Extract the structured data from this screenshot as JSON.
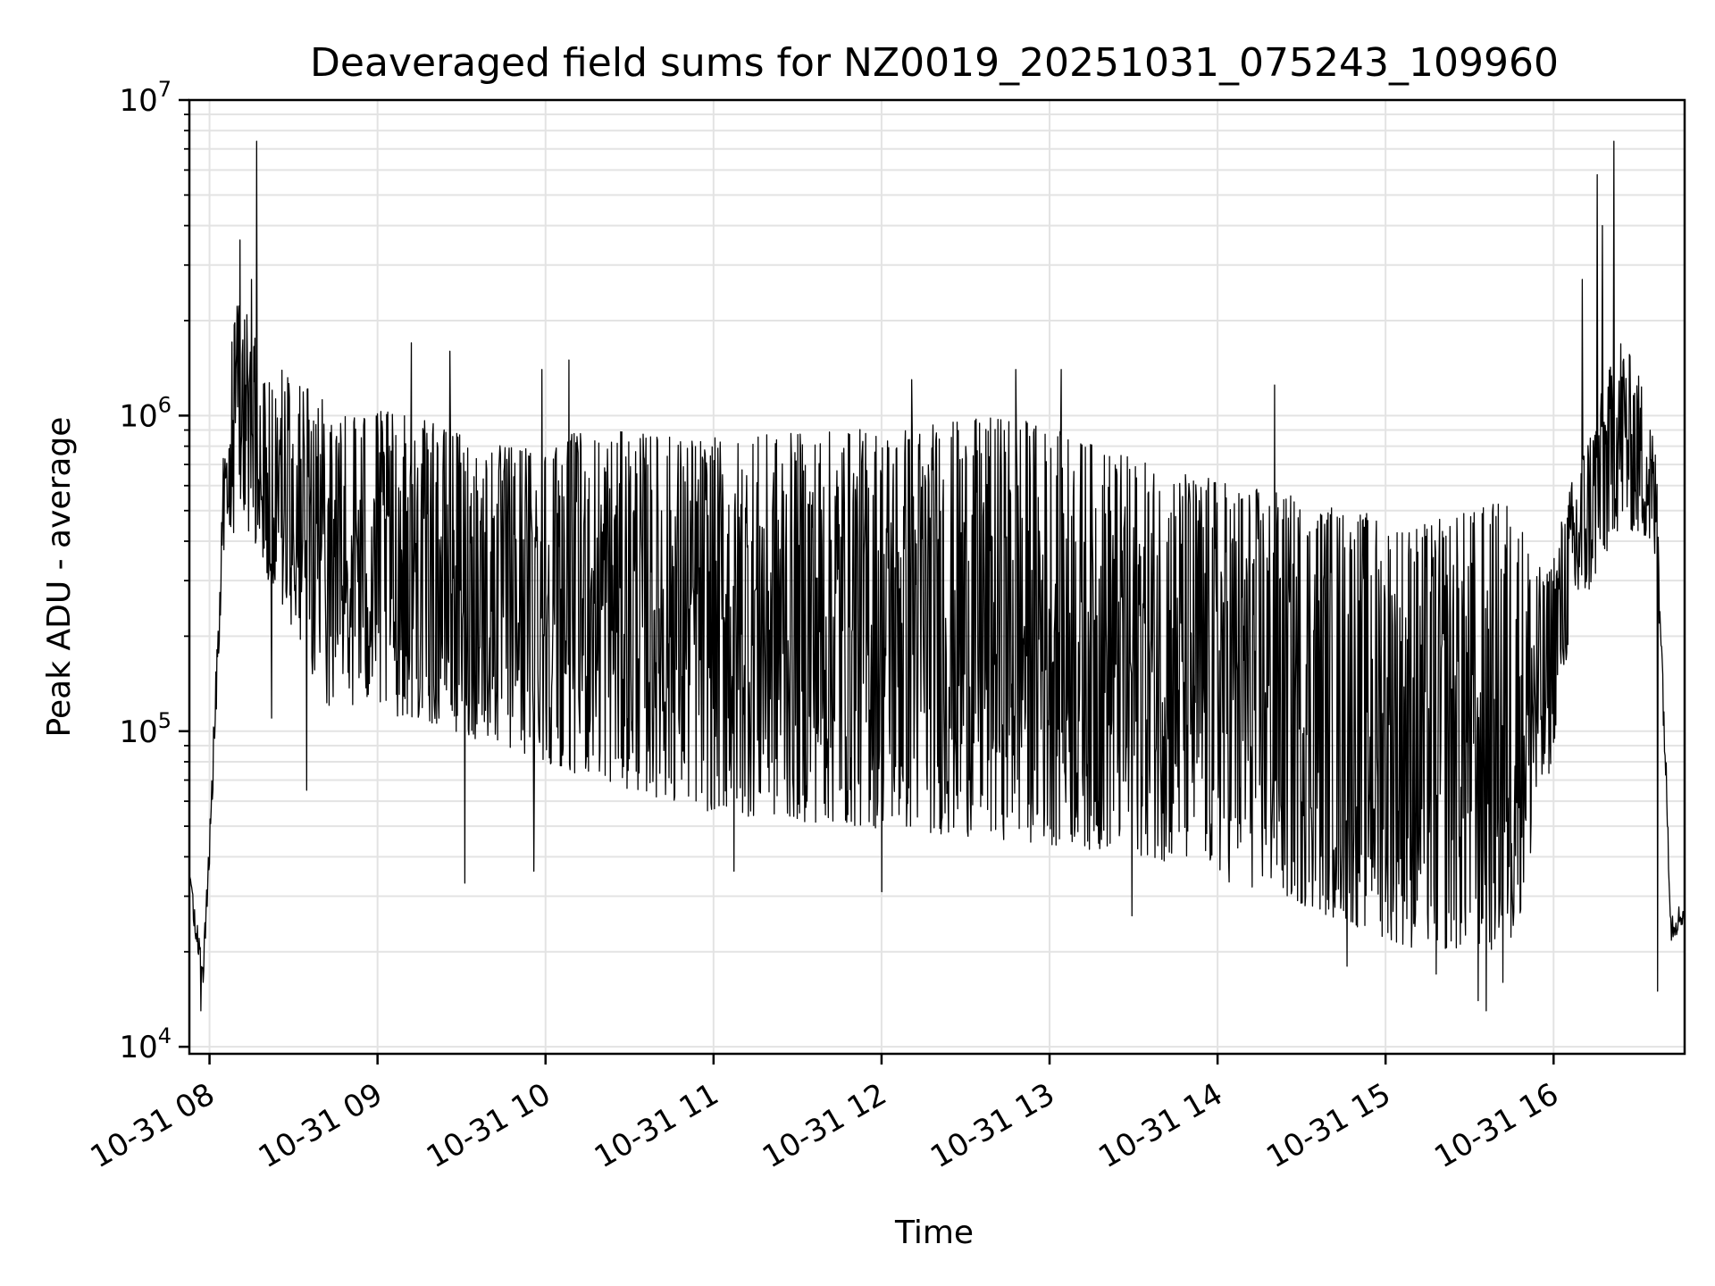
{
  "chart_data": {
    "type": "line",
    "title": "Deaveraged field sums for NZ0019_20251031_075243_109960",
    "xlabel": "Time",
    "ylabel": "Peak ADU - average",
    "yscale": "log",
    "ylim": [
      9500,
      10000000
    ],
    "xlim_hours": [
      7.88,
      16.78
    ],
    "grid": true,
    "line_color": "#000000",
    "x_ticks": [
      {
        "value": 8,
        "label": "10-31 08"
      },
      {
        "value": 9,
        "label": "10-31 09"
      },
      {
        "value": 10,
        "label": "10-31 10"
      },
      {
        "value": 11,
        "label": "10-31 11"
      },
      {
        "value": 12,
        "label": "10-31 12"
      },
      {
        "value": 13,
        "label": "10-31 13"
      },
      {
        "value": 14,
        "label": "10-31 14"
      },
      {
        "value": 15,
        "label": "10-31 15"
      },
      {
        "value": 16,
        "label": "10-31 16"
      }
    ],
    "y_ticks": [
      {
        "value": 10000,
        "base": "10",
        "exp": "4"
      },
      {
        "value": 100000,
        "base": "10",
        "exp": "5"
      },
      {
        "value": 1000000,
        "base": "10",
        "exp": "6"
      },
      {
        "value": 10000000,
        "base": "10",
        "exp": "7"
      }
    ],
    "series": [
      {
        "name": "Peak ADU - average",
        "envelope": [
          {
            "t": 7.88,
            "low": 30000,
            "high": 42000
          },
          {
            "t": 7.96,
            "low": 14000,
            "high": 22000
          },
          {
            "t": 8.0,
            "low": 35000,
            "high": 60000
          },
          {
            "t": 8.08,
            "low": 300000,
            "high": 1300000
          },
          {
            "t": 8.18,
            "low": 500000,
            "high": 2500000
          },
          {
            "t": 8.35,
            "low": 300000,
            "high": 1500000
          },
          {
            "t": 8.7,
            "low": 120000,
            "high": 1100000
          },
          {
            "t": 9.2,
            "low": 110000,
            "high": 1000000
          },
          {
            "t": 9.7,
            "low": 90000,
            "high": 800000
          },
          {
            "t": 10.3,
            "low": 70000,
            "high": 900000
          },
          {
            "t": 11.0,
            "low": 55000,
            "high": 850000
          },
          {
            "t": 11.8,
            "low": 50000,
            "high": 900000
          },
          {
            "t": 12.8,
            "low": 45000,
            "high": 1000000
          },
          {
            "t": 13.6,
            "low": 40000,
            "high": 700000
          },
          {
            "t": 14.5,
            "low": 28000,
            "high": 550000
          },
          {
            "t": 15.2,
            "low": 20000,
            "high": 450000
          },
          {
            "t": 15.75,
            "low": 20000,
            "high": 550000
          },
          {
            "t": 15.95,
            "low": 60000,
            "high": 300000
          },
          {
            "t": 16.1,
            "low": 200000,
            "high": 600000
          },
          {
            "t": 16.4,
            "low": 450000,
            "high": 1800000
          },
          {
            "t": 16.55,
            "low": 400000,
            "high": 1200000
          },
          {
            "t": 16.62,
            "low": 300000,
            "high": 700000
          },
          {
            "t": 16.7,
            "low": 20000,
            "high": 35000
          },
          {
            "t": 16.78,
            "low": 24000,
            "high": 32000
          }
        ],
        "spikes": [
          {
            "t": 8.18,
            "value": 3600000
          },
          {
            "t": 8.28,
            "value": 7400000
          },
          {
            "t": 8.25,
            "value": 2700000
          },
          {
            "t": 9.2,
            "value": 1700000
          },
          {
            "t": 9.43,
            "value": 1600000
          },
          {
            "t": 9.98,
            "value": 1400000
          },
          {
            "t": 10.14,
            "value": 1500000
          },
          {
            "t": 12.18,
            "value": 1300000
          },
          {
            "t": 12.8,
            "value": 1400000
          },
          {
            "t": 13.07,
            "value": 1400000
          },
          {
            "t": 14.34,
            "value": 1250000
          },
          {
            "t": 16.26,
            "value": 5800000
          },
          {
            "t": 16.36,
            "value": 7400000
          },
          {
            "t": 16.29,
            "value": 4000000
          },
          {
            "t": 16.17,
            "value": 2700000
          }
        ],
        "dips": [
          {
            "t": 7.95,
            "value": 13000
          },
          {
            "t": 8.37,
            "value": 110000
          },
          {
            "t": 8.58,
            "value": 65000
          },
          {
            "t": 9.52,
            "value": 33000
          },
          {
            "t": 9.93,
            "value": 36000
          },
          {
            "t": 11.12,
            "value": 36000
          },
          {
            "t": 12.0,
            "value": 31000
          },
          {
            "t": 13.49,
            "value": 26000
          },
          {
            "t": 14.77,
            "value": 18000
          },
          {
            "t": 15.6,
            "value": 13000
          },
          {
            "t": 16.62,
            "value": 15000
          }
        ],
        "low_floor_points": [
          {
            "t": 15.3,
            "value": 17000
          },
          {
            "t": 15.55,
            "value": 14000
          },
          {
            "t": 15.7,
            "value": 16000
          }
        ]
      }
    ]
  }
}
